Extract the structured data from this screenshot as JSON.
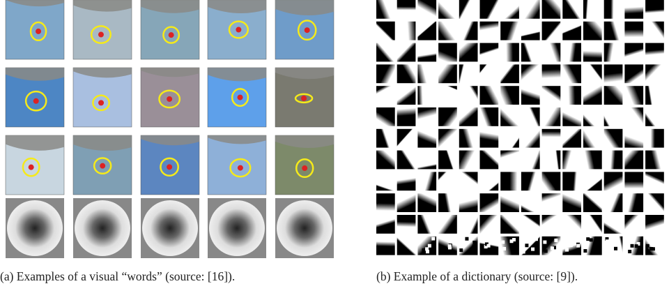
{
  "figure": {
    "panels": [
      {
        "caption": "(a) Examples of a visual “words” (source: [16])."
      },
      {
        "caption": "(b) Example of a dictionary (source: [9])."
      }
    ]
  }
}
